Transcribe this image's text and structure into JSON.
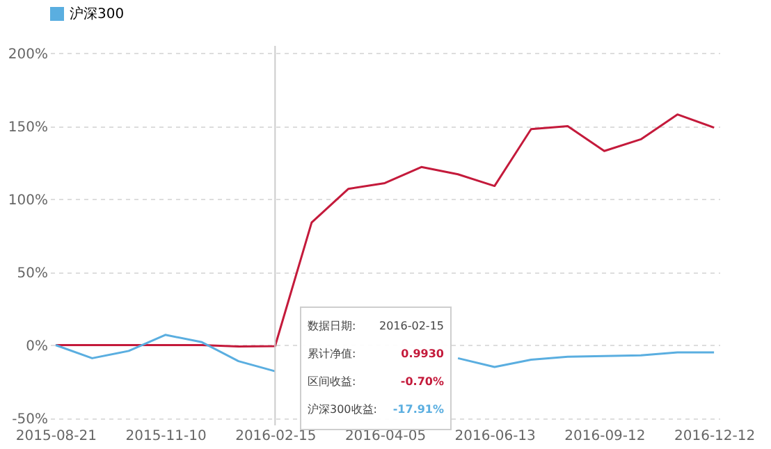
{
  "chart_data": {
    "type": "line",
    "categories": [
      "2015-08-21",
      null,
      null,
      "2015-11-10",
      null,
      null,
      "2016-02-15",
      null,
      null,
      "2016-04-05",
      null,
      null,
      "2016-06-13",
      null,
      null,
      "2016-09-12",
      null,
      null,
      "2016-12-12"
    ],
    "series": [
      {
        "color": "#c41a3b",
        "values": [
          0,
          0,
          0,
          0,
          0,
          -1,
          -0.7,
          84,
          107,
          111,
          122,
          117,
          109,
          148,
          150,
          133,
          141,
          158,
          149
        ]
      },
      {
        "name": "沪深300",
        "color": "#5aaee0",
        "values": [
          0,
          -9,
          -4,
          7,
          2,
          -11,
          -17.91,
          null,
          null,
          null,
          null,
          -9,
          -15,
          -10,
          -8,
          -7.5,
          -7,
          -5,
          -5
        ]
      }
    ],
    "ylim": [
      -55,
      205
    ],
    "yticks": [
      {
        "value": -50,
        "label": "-50%"
      },
      {
        "value": 0,
        "label": "0%"
      },
      {
        "value": 50,
        "label": "50%"
      },
      {
        "value": 100,
        "label": "100%"
      },
      {
        "value": 150,
        "label": "150%"
      },
      {
        "value": 200,
        "label": "200%"
      }
    ],
    "grid": "y",
    "legend": "top",
    "marker": "none",
    "line_style": "solid",
    "ref_lines": [
      {
        "axis": "x",
        "value": "2016-02-15",
        "color": "#cccccc"
      }
    ],
    "annotations": [
      "数据日期:",
      "2016-02-15",
      "累计净值:",
      "0.9930",
      "区间收益:",
      "-0.70%",
      "沪深300收益:",
      "-17.91%"
    ]
  }
}
